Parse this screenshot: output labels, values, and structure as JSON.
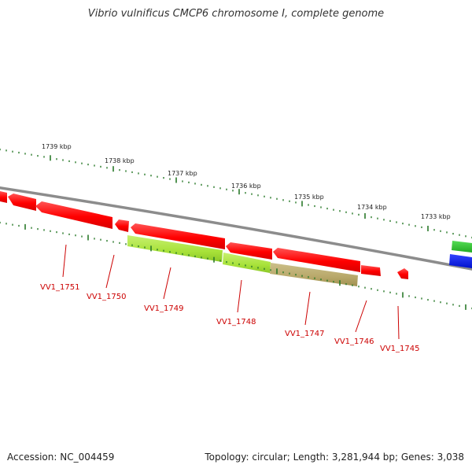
{
  "map": {
    "title": "Vibrio vulnificus CMCP6 chromosome I, complete genome",
    "accession": "Accession: NC_004459",
    "summary": "Topology: circular; Length: 3,281,944 bp; Genes: 3,038"
  },
  "colors": {
    "backbone": "#8c8c8c",
    "tick": "#2a7a2a",
    "gene_forward": "#ff0000",
    "gene_reverse": "#ff0000",
    "feature_light_green": "#a8e23a",
    "feature_olive": "#b8a86a",
    "feature_green": "#33cc33",
    "feature_blue": "#0022ee",
    "label": "#cc0000",
    "scale_text": "#222222"
  },
  "scale_labels": [
    {
      "text": "1739 kbp"
    },
    {
      "text": "1738 kbp"
    },
    {
      "text": "1737 kbp"
    },
    {
      "text": "1736 kbp"
    },
    {
      "text": "1735 kbp"
    },
    {
      "text": "1734 kbp"
    },
    {
      "text": "1733 kbp"
    }
  ],
  "gene_labels": [
    {
      "text": "VV1_1751"
    },
    {
      "text": "VV1_1750"
    },
    {
      "text": "VV1_1749"
    },
    {
      "text": "VV1_1748"
    },
    {
      "text": "VV1_1747"
    },
    {
      "text": "VV1_1746"
    },
    {
      "text": "VV1_1745"
    }
  ]
}
